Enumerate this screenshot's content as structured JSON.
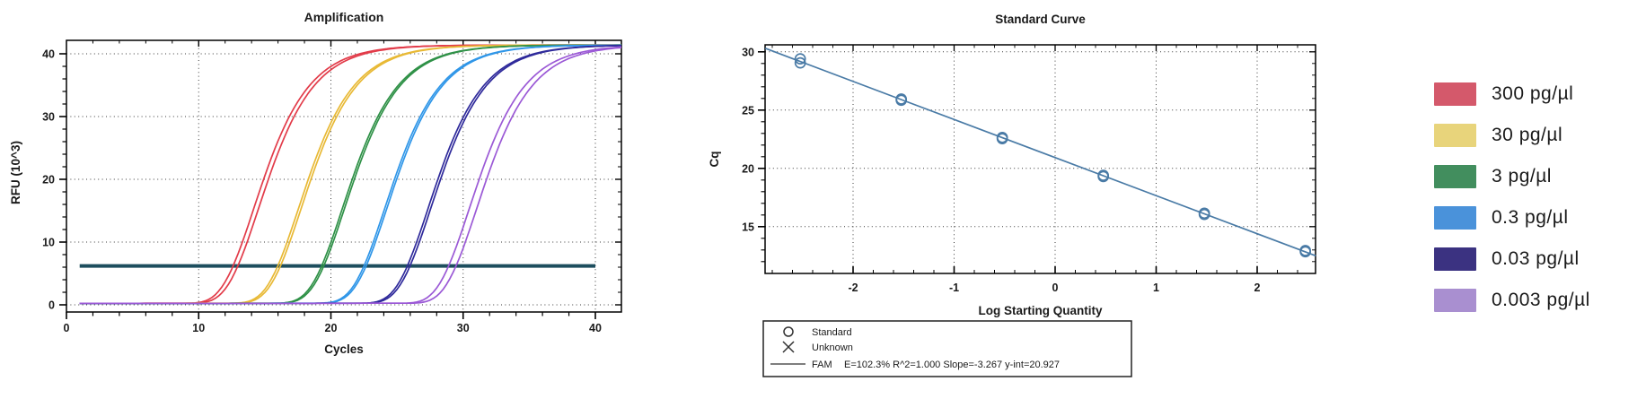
{
  "legend": {
    "items": [
      {
        "label": "300 pg/µl",
        "color": "#d4596b"
      },
      {
        "label": "30 pg/µl",
        "color": "#e8d47b"
      },
      {
        "label": "3 pg/µl",
        "color": "#428e5e"
      },
      {
        "label": "0.3 pg/µl",
        "color": "#4a92da"
      },
      {
        "label": "0.03 pg/µl",
        "color": "#3b3281"
      },
      {
        "label": "0.003 pg/µl",
        "color": "#a98fd0"
      }
    ]
  },
  "chart_data": [
    {
      "type": "line",
      "title": "Amplification",
      "xlabel": "Cycles",
      "ylabel": "RFU (10^3)",
      "xlim": [
        0,
        42
      ],
      "ylim": [
        -1.1,
        42.1
      ],
      "xticks": [
        0,
        10,
        20,
        30,
        40
      ],
      "yticks": [
        0,
        10,
        20,
        30,
        40
      ],
      "grid": "dotted",
      "threshold_rfu": 6.2,
      "threshold_color": "#1d4e5e",
      "baseline_rfu": 0.25,
      "plateau_rfu": 41.1,
      "series": [
        {
          "name": "300 pg/µl",
          "color": "#e23b49",
          "cq": 12.8,
          "replicate_offsets": [
            -0.18,
            0.18
          ]
        },
        {
          "name": "30 pg/µl",
          "color": "#e8b935",
          "cq": 16.1,
          "replicate_offsets": [
            -0.1,
            0.1
          ]
        },
        {
          "name": "3 pg/µl",
          "color": "#2f9147",
          "cq": 19.4,
          "replicate_offsets": [
            -0.08,
            0.08
          ]
        },
        {
          "name": "0.3 pg/µl",
          "color": "#2f96e8",
          "cq": 22.6,
          "replicate_offsets": [
            -0.08,
            0.08
          ]
        },
        {
          "name": "0.03 pg/µl",
          "color": "#2f2a9b",
          "cq": 25.9,
          "replicate_offsets": [
            -0.1,
            0.1
          ]
        },
        {
          "name": "0.003 pg/µl",
          "color": "#9b59d6",
          "cq": 29.2,
          "replicate_offsets": [
            -0.28,
            0.28
          ]
        }
      ]
    },
    {
      "type": "scatter",
      "title": "Standard Curve",
      "xlabel": "Log Starting Quantity",
      "ylabel": "Cq",
      "xlim": [
        -2.87,
        2.58
      ],
      "ylim": [
        11.0,
        30.6
      ],
      "xticks": [
        -2,
        -1,
        0,
        1,
        2
      ],
      "yticks": [
        15,
        20,
        25,
        30
      ],
      "grid": "dotted",
      "line_color": "#4a7ba6",
      "slope": -3.267,
      "y_int": 20.927,
      "efficiency": "102.3%",
      "r_squared": "1.000",
      "points": [
        {
          "x": 2.477,
          "cq": [
            12.85,
            12.95
          ]
        },
        {
          "x": 1.477,
          "cq": [
            16.05,
            16.15
          ]
        },
        {
          "x": 0.477,
          "cq": [
            19.3,
            19.4
          ]
        },
        {
          "x": -0.523,
          "cq": [
            22.55,
            22.65
          ]
        },
        {
          "x": -1.523,
          "cq": [
            25.85,
            25.95
          ]
        },
        {
          "x": -2.523,
          "cq": [
            29.05,
            29.4
          ]
        }
      ],
      "legend_box": {
        "standard_label": "Standard",
        "unknown_label": "Unknown",
        "fam_label": "FAM",
        "fam_stats": "E=102.3% R^2=1.000 Slope=-3.267 y-int=20.927"
      }
    }
  ]
}
